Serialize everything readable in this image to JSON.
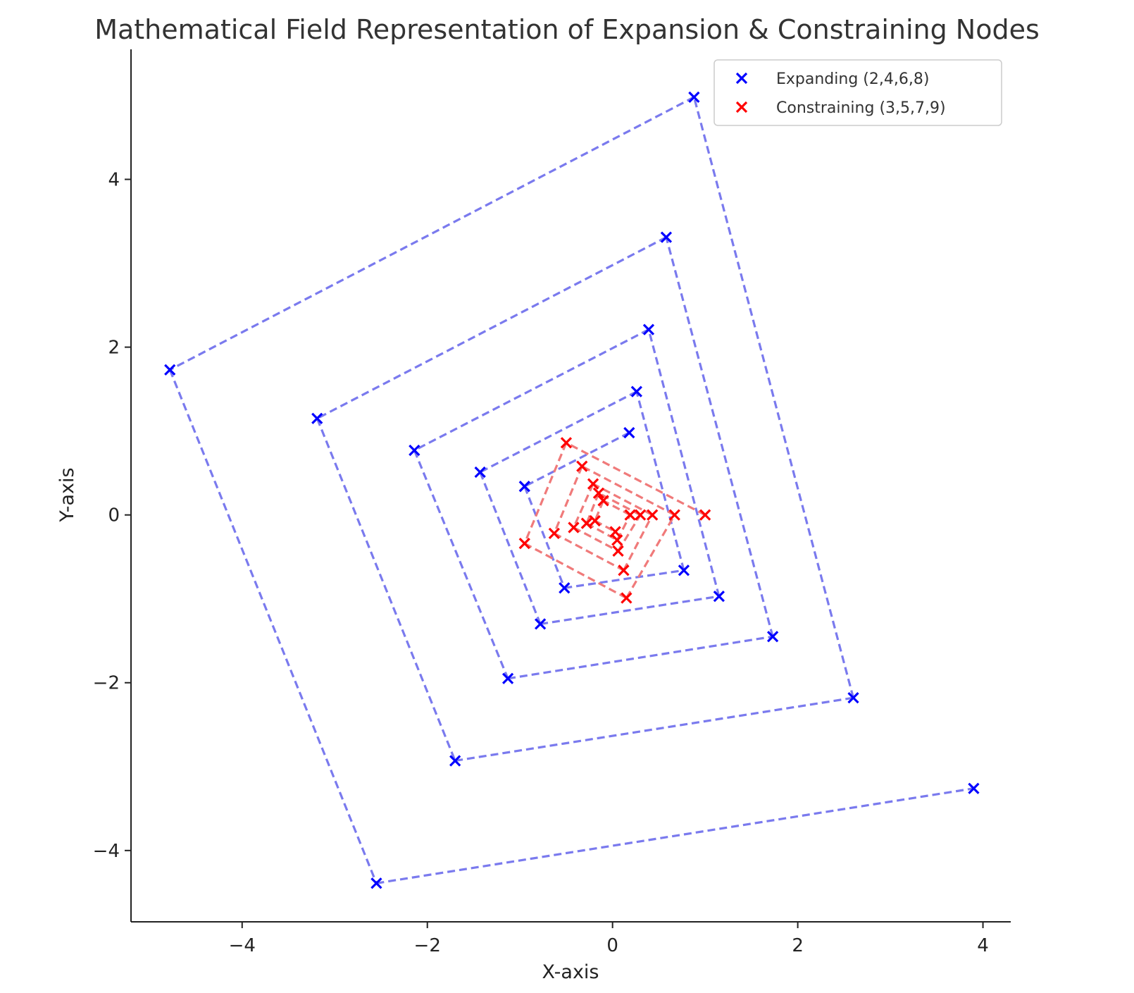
{
  "chart_data": {
    "type": "scatter",
    "title": "Mathematical Field Representation of Expansion & Constraining Nodes",
    "xlabel": "X-axis",
    "ylabel": "Y-axis",
    "xlim": [
      -5.2,
      4.3
    ],
    "ylim": [
      -4.85,
      5.55
    ],
    "x_ticks": [
      -4,
      -2,
      0,
      2,
      4
    ],
    "y_ticks": [
      -4,
      -2,
      0,
      2,
      4
    ],
    "x_tick_labels": [
      "−4",
      "−2",
      "0",
      "2",
      "4"
    ],
    "y_tick_labels": [
      "−4",
      "−2",
      "0",
      "2",
      "4"
    ],
    "grid": false,
    "legend_position": "top-right",
    "line_style": "dashed",
    "series": [
      {
        "name": "Expanding (2,4,6,8)",
        "color": "#0000ff",
        "line_color": "#7a7aee",
        "marker": "x",
        "points": [
          [
            0.18,
            0.98
          ],
          [
            -0.95,
            0.34
          ],
          [
            -0.52,
            -0.87
          ],
          [
            0.77,
            -0.66
          ],
          [
            0.26,
            1.47
          ],
          [
            -1.43,
            0.51
          ],
          [
            -0.78,
            -1.3
          ],
          [
            1.15,
            -0.97
          ],
          [
            0.39,
            2.21
          ],
          [
            -2.14,
            0.77
          ],
          [
            -1.13,
            -1.95
          ],
          [
            1.73,
            -1.45
          ],
          [
            0.58,
            3.31
          ],
          [
            -3.19,
            1.15
          ],
          [
            -1.7,
            -2.93
          ],
          [
            2.6,
            -2.18
          ],
          [
            0.88,
            4.98
          ],
          [
            -4.78,
            1.73
          ],
          [
            -2.55,
            -4.39
          ],
          [
            3.9,
            -3.26
          ]
        ]
      },
      {
        "name": "Constraining (3,5,7,9)",
        "color": "#ff0000",
        "line_color": "#f07a7a",
        "marker": "x",
        "points": [
          [
            1.0,
            0.0
          ],
          [
            -0.5,
            0.86
          ],
          [
            -0.95,
            -0.34
          ],
          [
            0.15,
            -0.99
          ],
          [
            0.67,
            0.0
          ],
          [
            -0.33,
            0.58
          ],
          [
            -0.63,
            -0.22
          ],
          [
            0.12,
            -0.66
          ],
          [
            0.43,
            0.0
          ],
          [
            -0.21,
            0.37
          ],
          [
            -0.42,
            -0.15
          ],
          [
            0.06,
            -0.43
          ],
          [
            0.3,
            0.0
          ],
          [
            -0.15,
            0.26
          ],
          [
            -0.28,
            -0.1
          ],
          [
            0.05,
            -0.3
          ],
          [
            0.19,
            0.0
          ],
          [
            -0.1,
            0.17
          ],
          [
            -0.19,
            -0.07
          ],
          [
            0.03,
            -0.2
          ]
        ]
      }
    ]
  }
}
